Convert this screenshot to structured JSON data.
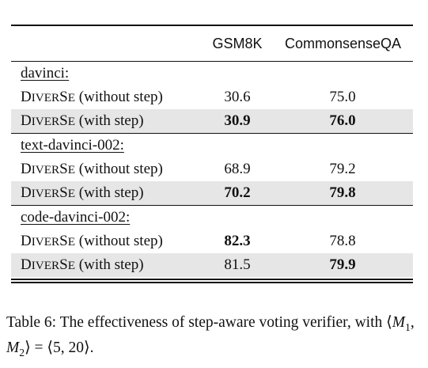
{
  "table": {
    "headers": [
      "",
      "GSM8K",
      "CommonsenseQA"
    ],
    "method_name": {
      "d": "D",
      "iver": "IVER",
      "s": "S",
      "e": "E"
    },
    "groups": [
      {
        "label": "davinci:",
        "rows": [
          {
            "suffix": "(without step)",
            "gsm8k": "30.6",
            "csqa": "75.0",
            "gsm8k_bold": false,
            "csqa_bold": false,
            "shaded": false
          },
          {
            "suffix": "(with step)",
            "gsm8k": "30.9",
            "csqa": "76.0",
            "gsm8k_bold": true,
            "csqa_bold": true,
            "shaded": true
          }
        ]
      },
      {
        "label": "text-davinci-002:",
        "rows": [
          {
            "suffix": "(without step)",
            "gsm8k": "68.9",
            "csqa": "79.2",
            "gsm8k_bold": false,
            "csqa_bold": false,
            "shaded": false
          },
          {
            "suffix": "(with step)",
            "gsm8k": "70.2",
            "csqa": "79.8",
            "gsm8k_bold": true,
            "csqa_bold": true,
            "shaded": true
          }
        ]
      },
      {
        "label": "code-davinci-002:",
        "rows": [
          {
            "suffix": "(without step)",
            "gsm8k": "82.3",
            "csqa": "78.8",
            "gsm8k_bold": true,
            "csqa_bold": false,
            "shaded": false
          },
          {
            "suffix": "(with step)",
            "gsm8k": "81.5",
            "csqa": "79.9",
            "gsm8k_bold": false,
            "csqa_bold": true,
            "shaded": true
          }
        ]
      }
    ]
  },
  "caption": {
    "text": "Table 6: The effectiveness of step-aware voting verifier, with",
    "math": {
      "open": "⟨",
      "m": "M",
      "sub1": "1",
      "comma": ", ",
      "sub2": "2",
      "close_eq": "⟩ = ⟨",
      "values": "5, 20",
      "close": "⟩",
      "period": "."
    }
  }
}
